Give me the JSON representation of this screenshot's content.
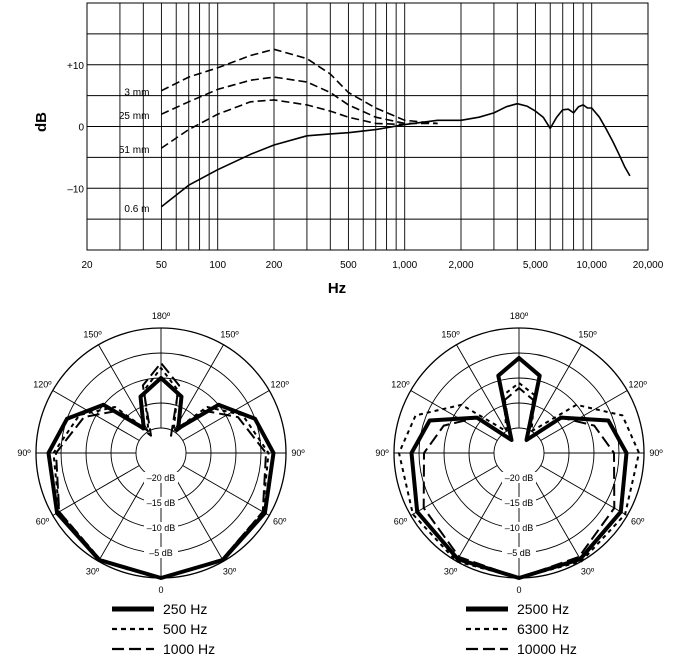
{
  "chart_data": [
    {
      "type": "line",
      "xlabel": "Hz",
      "ylabel": "dB",
      "xscale": "log",
      "xlim": [
        20,
        20000
      ],
      "ylim": [
        -20,
        20
      ],
      "x_ticks": [
        20,
        50,
        100,
        200,
        500,
        1000,
        2000,
        5000,
        10000,
        20000
      ],
      "x_tick_labels": [
        "20",
        "50",
        "100",
        "200",
        "500",
        "1,000",
        "2,000",
        "5,000",
        "10,000",
        "20,000"
      ],
      "y_ticks": [
        10,
        0,
        -10
      ],
      "y_tick_labels": [
        "+10",
        "0",
        "–10"
      ],
      "grid": true,
      "series": [
        {
          "name": "0.6 m",
          "style": "solid",
          "x": [
            50,
            70,
            100,
            150,
            200,
            300,
            400,
            500,
            700,
            1000,
            1500,
            2000,
            2500,
            3000,
            3500,
            4000,
            4500,
            5000,
            5500,
            6000,
            6500,
            7000,
            7500,
            8000,
            8500,
            9000,
            9500,
            10000,
            11000,
            12000,
            13000,
            14000,
            15000,
            16000
          ],
          "y": [
            -13,
            -9.5,
            -7,
            -4.5,
            -3,
            -1.5,
            -1.2,
            -1,
            -0.5,
            0.3,
            1,
            1,
            1.5,
            2.2,
            3.2,
            3.7,
            3.3,
            2.5,
            1.5,
            -0.3,
            1.5,
            2.7,
            2.8,
            2.2,
            3.2,
            3.5,
            3.0,
            3.0,
            1.5,
            -0.5,
            -2.5,
            -4.5,
            -6.5,
            -8
          ]
        },
        {
          "name": "51 mm",
          "style": "dashed",
          "x": [
            50,
            70,
            100,
            150,
            200,
            300,
            400,
            500,
            700,
            1000
          ],
          "y": [
            -3.5,
            -0.5,
            2,
            4,
            4.3,
            3.5,
            2.5,
            1.5,
            0.5,
            0.3
          ]
        },
        {
          "name": "25 mm",
          "style": "dashed",
          "x": [
            50,
            70,
            100,
            150,
            200,
            300,
            400,
            500,
            700,
            1000,
            1500
          ],
          "y": [
            2,
            4,
            6,
            7.5,
            8,
            7.2,
            5.5,
            3.5,
            1.5,
            0.5,
            0.5
          ]
        },
        {
          "name": "3 mm",
          "style": "dashed",
          "x": [
            50,
            70,
            100,
            150,
            200,
            300,
            400,
            500,
            700,
            1000,
            1500
          ],
          "y": [
            5.8,
            8,
            9.5,
            11.5,
            12.5,
            11,
            8.5,
            5.5,
            3,
            1,
            0.5
          ]
        }
      ]
    },
    {
      "type": "polar",
      "radial_labels": [
        "–20 dB",
        "–15 dB",
        "–10 dB",
        "–5 dB"
      ],
      "radial_values": [
        -20,
        -15,
        -10,
        -5
      ],
      "angle_labels": [
        "0",
        "30º",
        "60º",
        "90º",
        "120º",
        "150º",
        "180º",
        "150º",
        "120º",
        "90º",
        "60º",
        "30º"
      ],
      "series": [
        {
          "name": "250 Hz",
          "style": "heavy",
          "angles": [
            0,
            30,
            60,
            90,
            110,
            130,
            145,
            160,
            180
          ],
          "db": [
            0,
            -0.3,
            -1,
            -2.5,
            -5,
            -10,
            -19,
            -13,
            -10
          ]
        },
        {
          "name": "500 Hz",
          "style": "dotted",
          "angles": [
            0,
            30,
            60,
            90,
            115,
            135,
            150,
            165,
            180
          ],
          "db": [
            0,
            -0.5,
            -1.5,
            -3.5,
            -7,
            -12,
            -20,
            -12,
            -8
          ]
        },
        {
          "name": "1000 Hz",
          "style": "dashed",
          "angles": [
            0,
            30,
            60,
            90,
            115,
            135,
            150,
            165,
            180
          ],
          "db": [
            0,
            -0.5,
            -1.5,
            -4,
            -8,
            -13,
            -21,
            -11,
            -7
          ]
        }
      ]
    },
    {
      "type": "polar",
      "radial_labels": [
        "–20 dB",
        "–15 dB",
        "–10 dB",
        "–5 dB"
      ],
      "radial_values": [
        -20,
        -15,
        -10,
        -5
      ],
      "angle_labels": [
        "0",
        "30º",
        "60º",
        "90º",
        "120º",
        "150º",
        "180º",
        "150º",
        "120º",
        "90º",
        "60º",
        "30º"
      ],
      "series": [
        {
          "name": "2500 Hz",
          "style": "heavy",
          "angles": [
            0,
            30,
            60,
            90,
            110,
            130,
            150,
            165,
            180
          ],
          "db": [
            0,
            -0.5,
            -1.5,
            -3.5,
            -6,
            -14,
            -22,
            -9,
            -6
          ]
        },
        {
          "name": "6300 Hz",
          "style": "dotted",
          "angles": [
            0,
            30,
            60,
            90,
            110,
            130,
            150,
            165,
            180
          ],
          "db": [
            0,
            0,
            -0.5,
            -1,
            -3,
            -10,
            -20,
            -13,
            -11
          ]
        },
        {
          "name": "10000 Hz",
          "style": "dashed",
          "angles": [
            0,
            30,
            60,
            90,
            110,
            130,
            150,
            165,
            180
          ],
          "db": [
            0,
            -1,
            -3,
            -6,
            -9,
            -14,
            -22,
            -14,
            -12
          ]
        }
      ]
    }
  ]
}
